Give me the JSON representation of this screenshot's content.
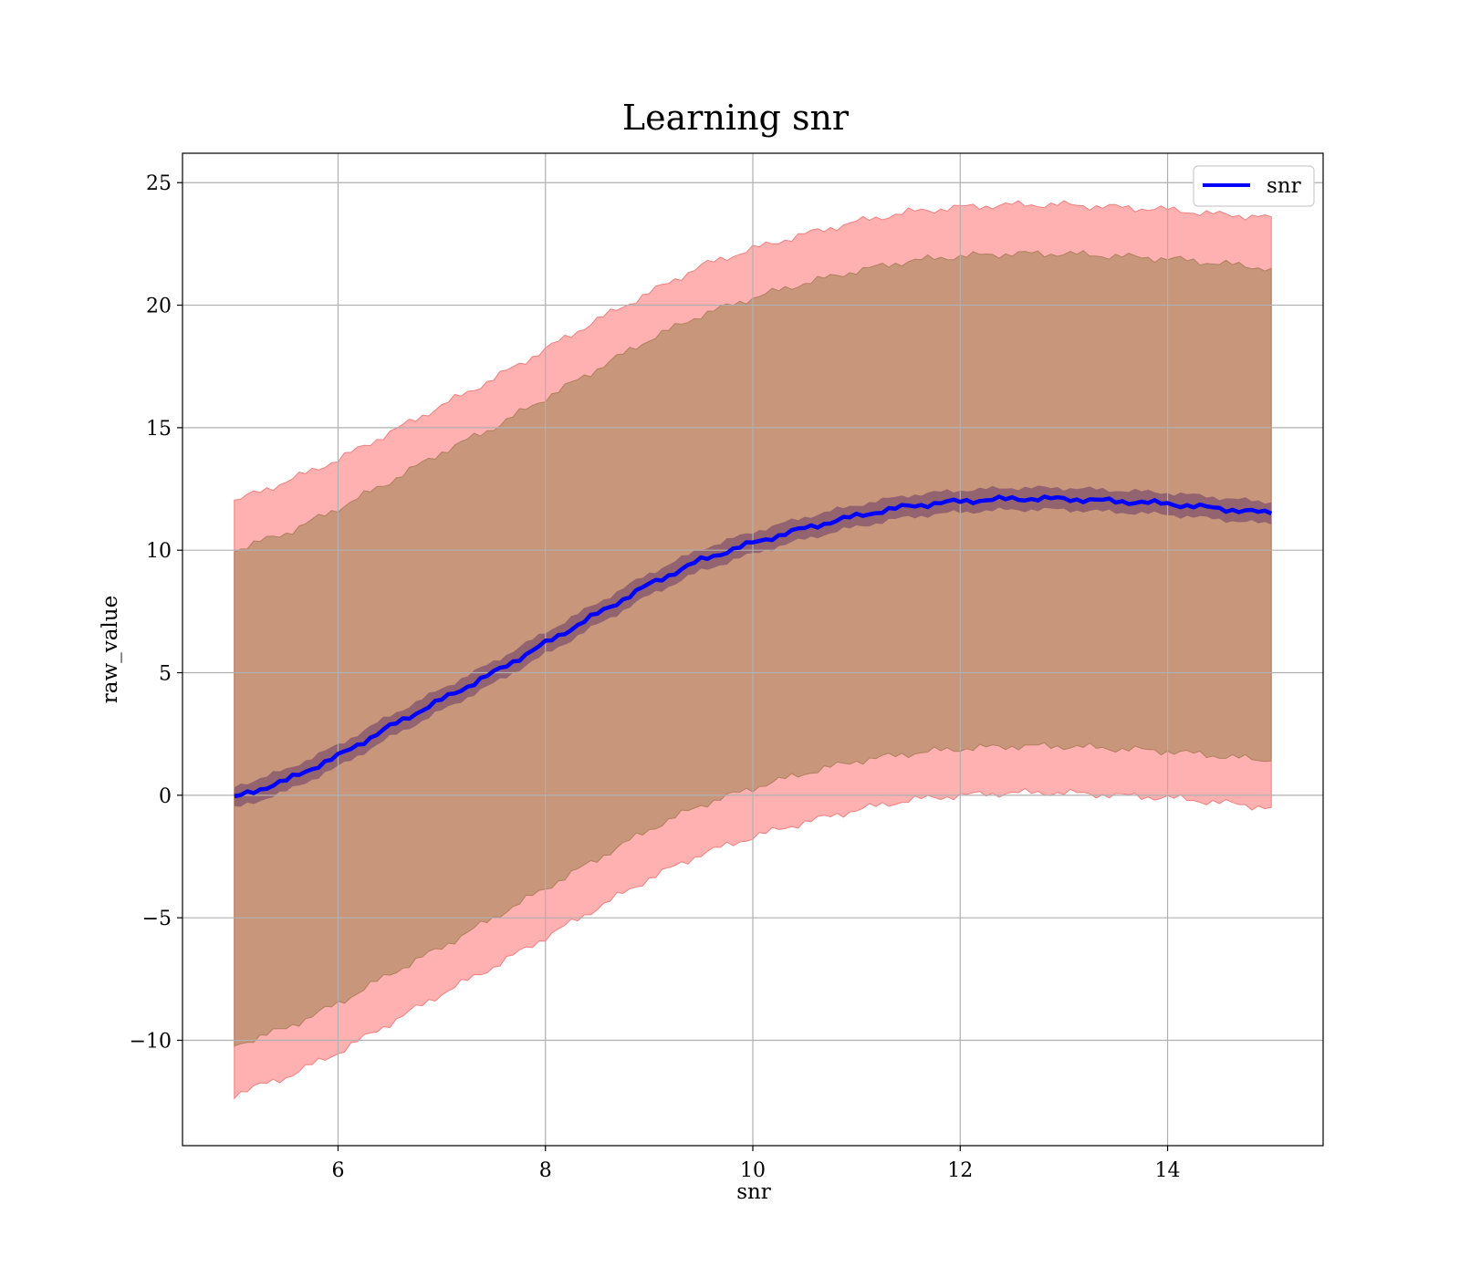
{
  "chart_data": {
    "type": "line",
    "title": "Learning snr",
    "xlabel": "snr",
    "ylabel": "raw_value",
    "xlim": [
      4.5,
      15.5
    ],
    "ylim": [
      -14.3,
      26.2
    ],
    "x_ticks": [
      6,
      8,
      10,
      12,
      14
    ],
    "y_ticks": [
      25,
      20,
      15,
      10,
      5,
      0,
      -5,
      -10
    ],
    "x_tick_labels": [
      "6",
      "8",
      "10",
      "12",
      "14"
    ],
    "y_tick_labels": [
      "25",
      "20",
      "15",
      "10",
      "5",
      "0",
      "−5",
      "−10"
    ],
    "grid": true,
    "legend": {
      "position": "top-right",
      "entries": [
        "snr"
      ]
    },
    "colors": {
      "line": "#0000ff",
      "outer_band": "#ffb0b0",
      "mid_band": "#c8967a",
      "inner_band": "#8a5a6e"
    },
    "series": [
      {
        "name": "snr",
        "x": [
          5.0,
          5.5,
          6.0,
          6.5,
          7.0,
          7.5,
          8.0,
          8.5,
          9.0,
          9.5,
          10.0,
          10.5,
          11.0,
          11.5,
          12.0,
          12.5,
          13.0,
          13.5,
          14.0,
          14.5,
          15.0
        ],
        "y": [
          -0.1,
          0.6,
          1.6,
          2.8,
          3.9,
          5.0,
          6.2,
          7.4,
          8.6,
          9.6,
          10.3,
          10.9,
          11.4,
          11.8,
          12.0,
          12.1,
          12.1,
          12.0,
          11.9,
          11.7,
          11.5
        ]
      }
    ],
    "bands": {
      "outer_upper": [
        12.0,
        12.8,
        13.7,
        14.8,
        15.9,
        17.0,
        18.2,
        19.4,
        20.5,
        21.6,
        22.3,
        22.9,
        23.4,
        23.8,
        24.0,
        24.1,
        24.1,
        24.0,
        23.9,
        23.7,
        23.6
      ],
      "outer_lower": [
        -12.2,
        -11.5,
        -10.5,
        -9.3,
        -8.1,
        -7.0,
        -5.8,
        -4.6,
        -3.4,
        -2.4,
        -1.7,
        -1.1,
        -0.6,
        -0.2,
        0.0,
        0.1,
        0.1,
        0.0,
        -0.1,
        -0.3,
        -0.5
      ],
      "mid_upper": [
        10.0,
        10.7,
        11.7,
        12.8,
        14.0,
        15.0,
        16.2,
        17.4,
        18.6,
        19.6,
        20.3,
        20.9,
        21.4,
        21.8,
        22.0,
        22.1,
        22.1,
        22.0,
        21.9,
        21.7,
        21.5
      ],
      "mid_lower": [
        -10.2,
        -9.5,
        -8.5,
        -7.3,
        -6.2,
        -5.0,
        -3.8,
        -2.6,
        -1.4,
        -0.4,
        0.3,
        0.9,
        1.4,
        1.7,
        1.9,
        2.0,
        2.0,
        1.9,
        1.8,
        1.6,
        1.4
      ],
      "inner_halfwidth": 0.45
    }
  }
}
